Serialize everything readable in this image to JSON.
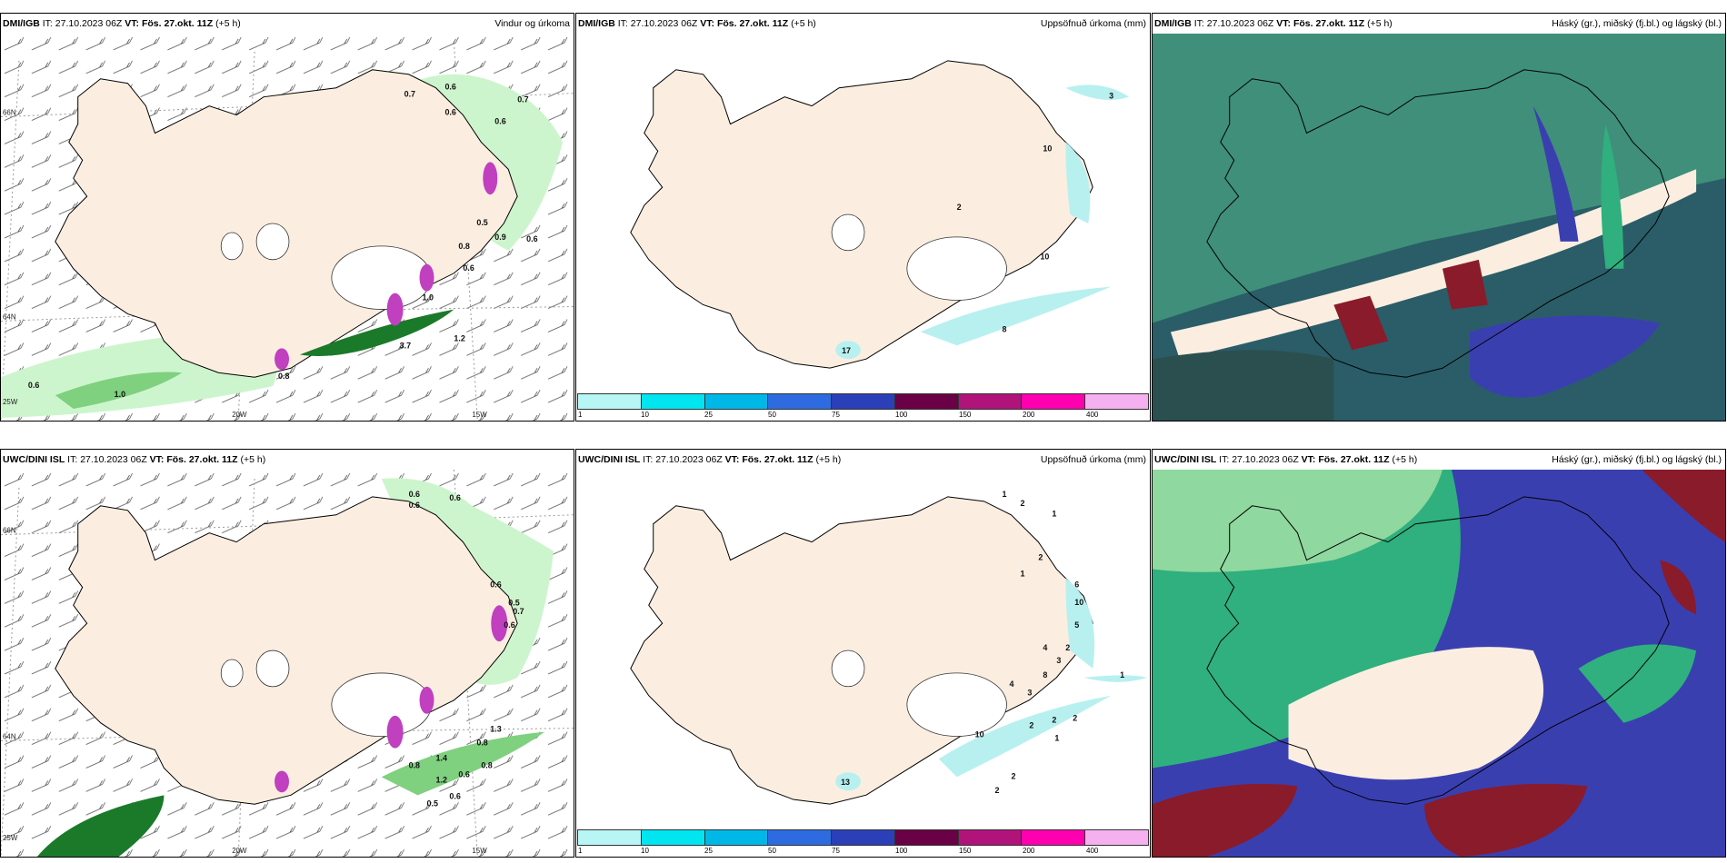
{
  "panels": [
    {
      "id": "top-left",
      "model": "DMI/IGB",
      "it_label": "IT:",
      "it_value": "27.10.2023 06Z",
      "vt_label": "VT:",
      "vt_value": "Fös. 27.okt. 11Z",
      "lead": "(+5 h)",
      "product": "Vindur og úrkoma",
      "labels": [
        "0.7",
        "0.6",
        "0.6",
        "0.7",
        "0.6",
        "0.6",
        "0.5",
        "0.9",
        "0.6",
        "0.8",
        "1.0",
        "3.7",
        "1.2",
        "0.6",
        "1.0",
        "0.8"
      ]
    },
    {
      "id": "top-middle",
      "model": "DMI/IGB",
      "it_label": "IT:",
      "it_value": "27.10.2023 06Z",
      "vt_label": "VT:",
      "vt_value": "Fös. 27.okt. 11Z",
      "lead": "(+5 h)",
      "product": "Uppsöfnuð úrkoma (mm)",
      "labels": [
        "3",
        "10",
        "2",
        "10",
        "8",
        "17"
      ]
    },
    {
      "id": "top-right",
      "model": "DMI/IGB",
      "it_label": "IT:",
      "it_value": "27.10.2023 06Z",
      "vt_label": "VT:",
      "vt_value": "Fös. 27.okt. 11Z",
      "lead": "(+5 h)",
      "product": "Háský (gr.), miðský (fj.bl.) og lágský (bl.)"
    },
    {
      "id": "bottom-left",
      "model": "UWC/DINI ISL",
      "it_label": "IT:",
      "it_value": "27.10.2023 06Z",
      "vt_label": "VT:",
      "vt_value": "Fös. 27.okt. 11Z",
      "lead": "(+5 h)",
      "product": "",
      "labels": [
        "0.6",
        "0.6",
        "0.6",
        "0.6",
        "0.5",
        "0.6",
        "0.7",
        "0.8",
        "1.4",
        "1.2",
        "0.8",
        "0.6",
        "0.8",
        "1.3",
        "0.5",
        "0.6"
      ]
    },
    {
      "id": "bottom-middle",
      "model": "UWC/DINI ISL",
      "it_label": "IT:",
      "it_value": "27.10.2023 06Z",
      "vt_label": "VT:",
      "vt_value": "Fös. 27.okt. 11Z",
      "lead": "(+5 h)",
      "product": "Uppsöfnuð úrkoma (mm)",
      "labels": [
        "1",
        "2",
        "1",
        "2",
        "1",
        "6",
        "10",
        "5",
        "4",
        "3",
        "2",
        "8",
        "4",
        "3",
        "1",
        "2",
        "2",
        "2",
        "1",
        "2",
        "2",
        "10",
        "13"
      ]
    },
    {
      "id": "bottom-right",
      "model": "UWC/DINI ISL",
      "it_label": "IT:",
      "it_value": "27.10.2023 06Z",
      "vt_label": "VT:",
      "vt_value": "Fös. 27.okt. 11Z",
      "lead": "(+5 h)",
      "product": "Háský (gr.), miðský (fj.bl.) og lágský (bl.)"
    }
  ],
  "grid_labels": {
    "lat_66": "66N",
    "lat_64": "64N",
    "lon_25": "25W",
    "lon_20": "20W",
    "lon_15": "15W"
  },
  "colorbar": {
    "ticks": [
      "1",
      "10",
      "25",
      "50",
      "75",
      "100",
      "150",
      "200",
      "400"
    ],
    "colors": [
      "#b8f5f5",
      "#00e5f0",
      "#00b8e8",
      "#2e6be0",
      "#2a3fb8",
      "#6a0045",
      "#b0137a",
      "#ff00b0",
      "#f5b0f0"
    ]
  },
  "colors": {
    "land": "#fbeee0",
    "ice": "#ffffff",
    "precip_light": "#cdf5cd",
    "precip_mid": "#7fd07f",
    "precip_heavy": "#1a7a2a",
    "snow_magenta": "#c040c0",
    "accum_cyan": "#b8f0f0",
    "cloud_high": "#2fb07e",
    "cloud_mid": "#3a3fb0",
    "cloud_low": "#2a5d68",
    "cloud_red": "#8a1b2a"
  }
}
